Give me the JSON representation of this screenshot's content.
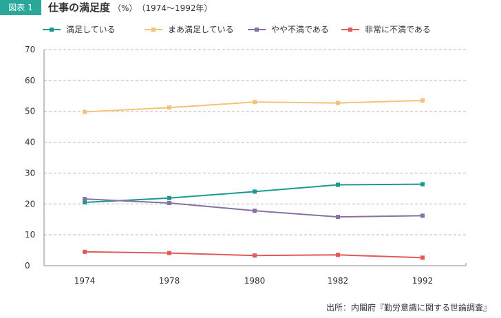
{
  "header": {
    "figure_label": "図表 1",
    "title": "仕事の満足度",
    "unit": "（%）",
    "period": "（1974～1992年）"
  },
  "source": "出所：内閣府『勤労意識に関する世論調査』",
  "chart_data": {
    "type": "line",
    "x": [
      "1974",
      "1978",
      "1980",
      "1982",
      "1992"
    ],
    "ylim": [
      0,
      70
    ],
    "yticks": [
      0,
      10,
      20,
      30,
      40,
      50,
      60,
      70
    ],
    "grid": true,
    "legend_position": "top",
    "series": [
      {
        "name": "満足している",
        "color": "#1a9a8e",
        "values": [
          20.5,
          21.9,
          24.0,
          26.2,
          26.4
        ]
      },
      {
        "name": "まあ満足している",
        "color": "#f5c27a",
        "values": [
          49.8,
          51.2,
          53.0,
          52.7,
          53.5
        ]
      },
      {
        "name": "やや不満である",
        "color": "#8a6fa6",
        "values": [
          21.6,
          20.3,
          17.8,
          15.8,
          16.2
        ]
      },
      {
        "name": "非常に不満である",
        "color": "#e05a5a",
        "values": [
          4.5,
          4.1,
          3.3,
          3.5,
          2.6
        ]
      }
    ]
  }
}
